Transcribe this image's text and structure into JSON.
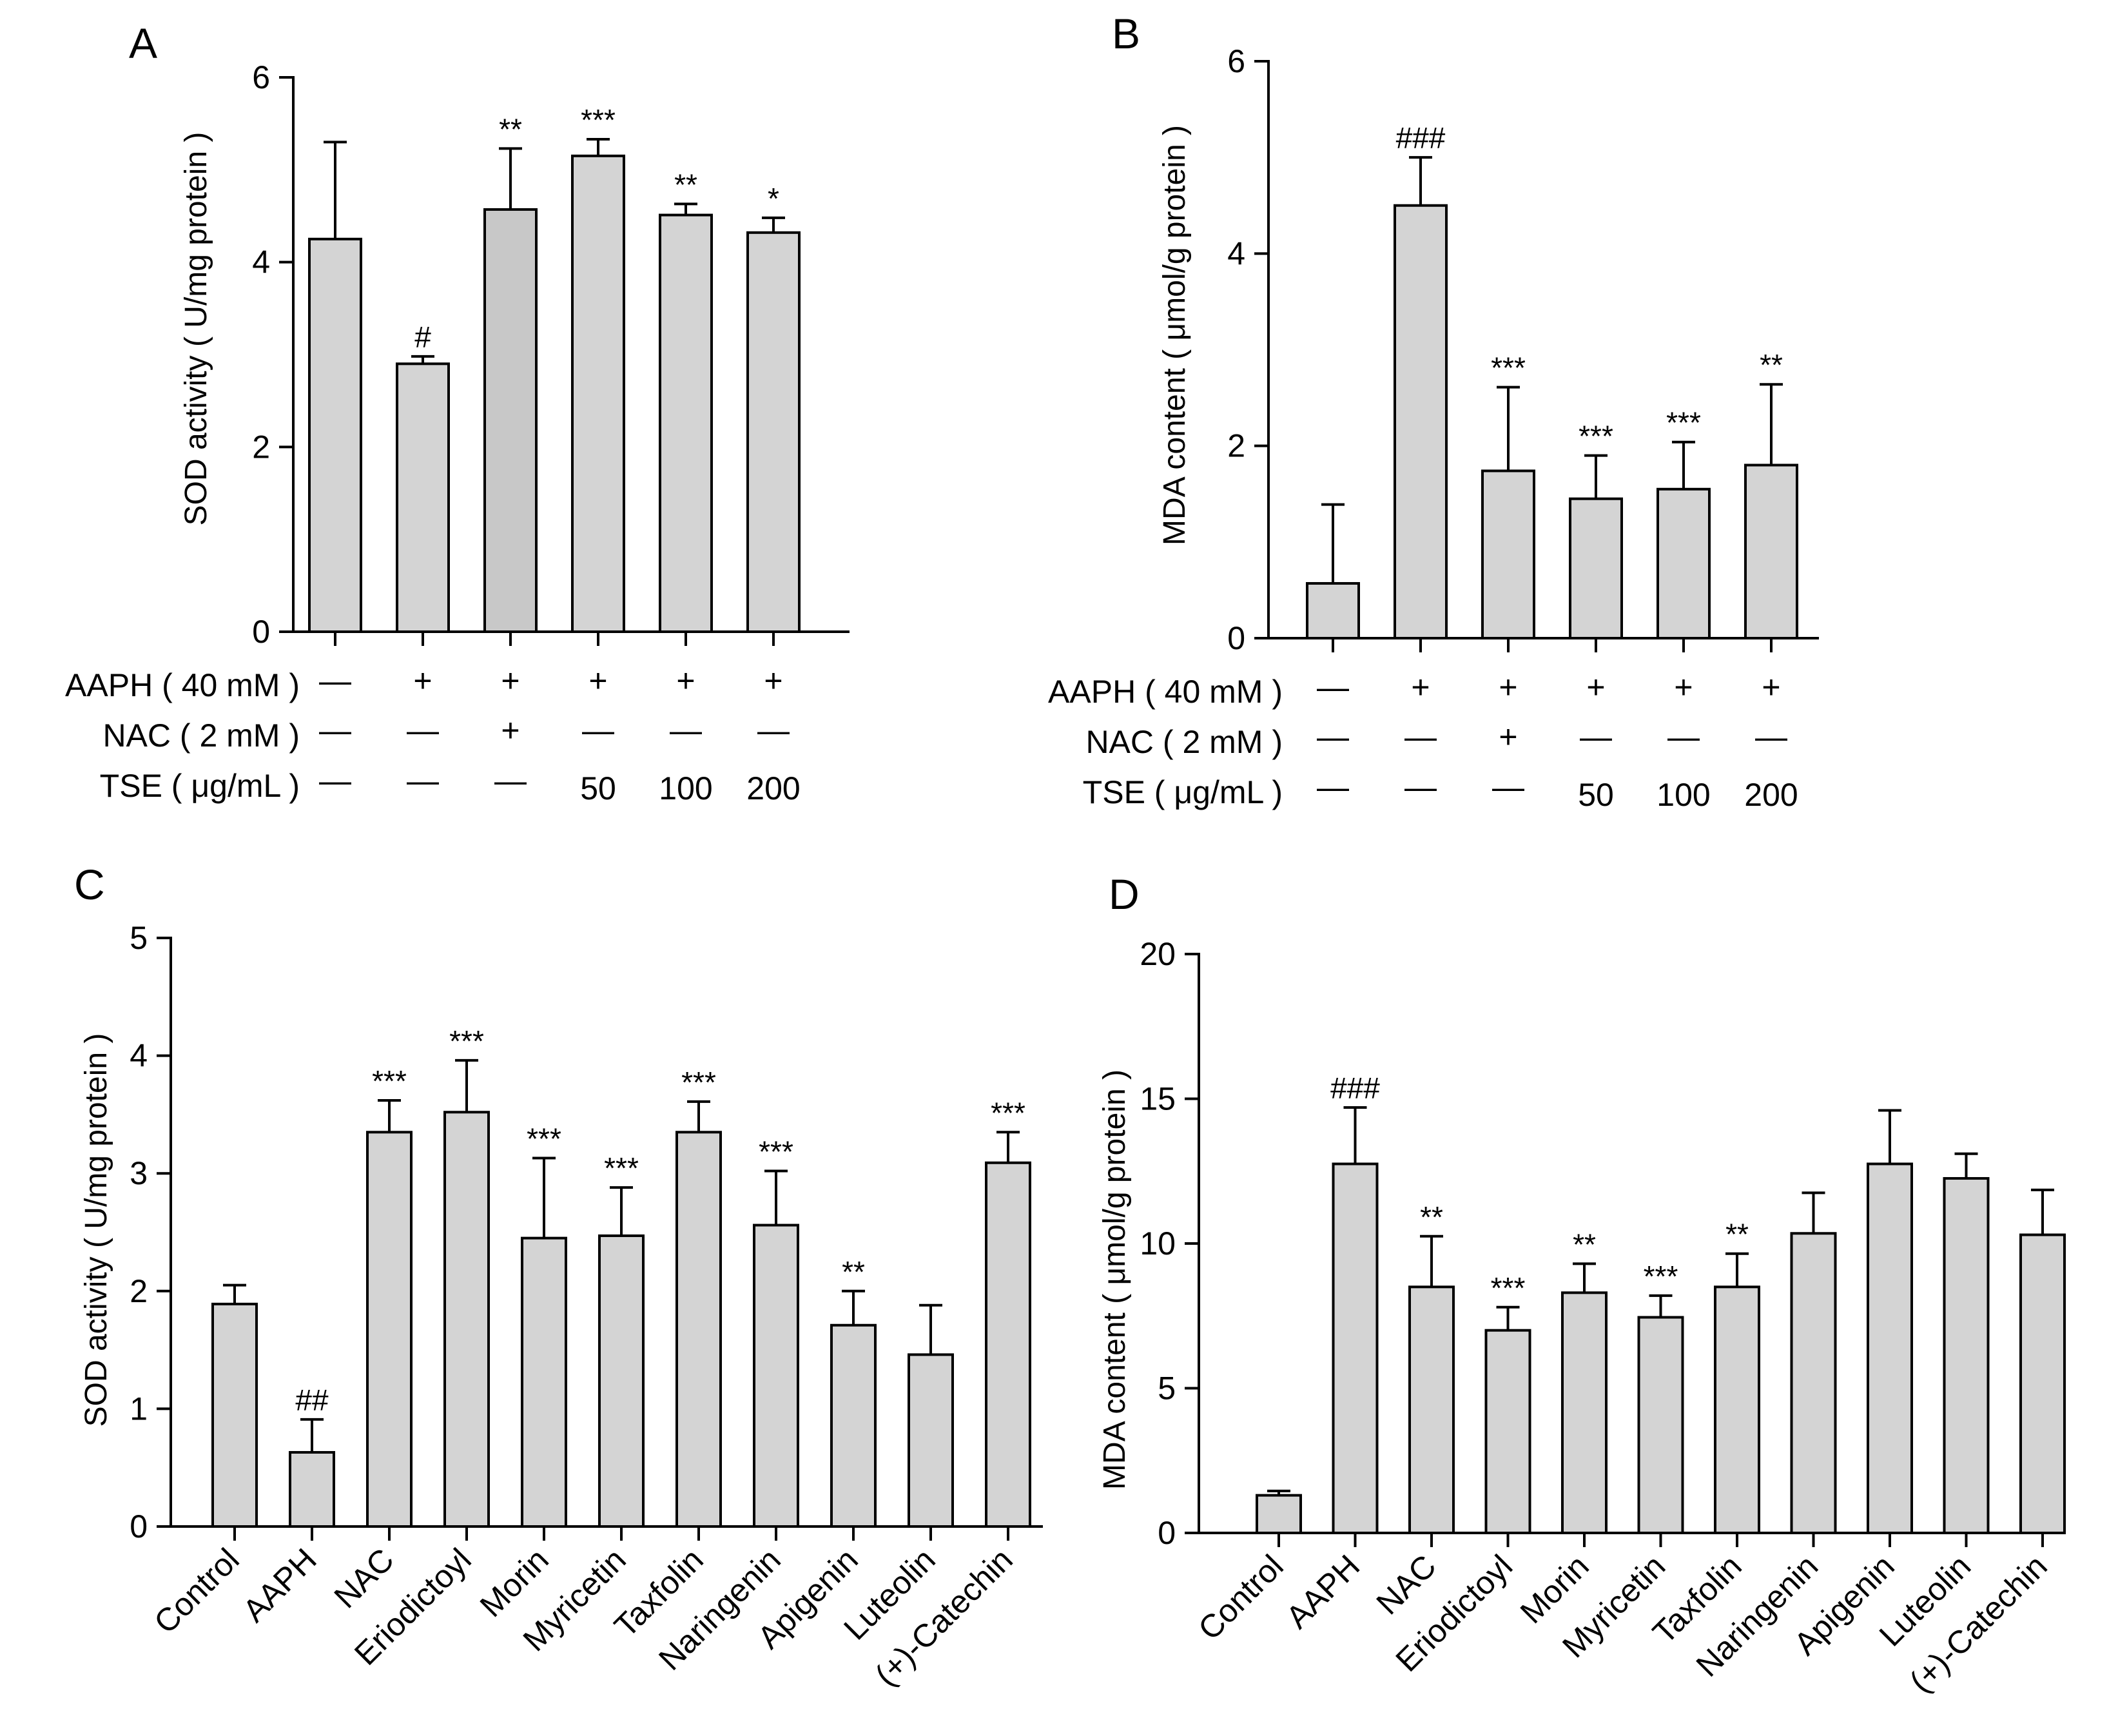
{
  "figure": {
    "bar_fill": "#d4d4d4",
    "bar_fill_alt": "#c8c8c8",
    "stroke": "#000000",
    "background": "#ffffff"
  },
  "chart_data": [
    {
      "id": "A",
      "panel_label": "A",
      "type": "bar",
      "ylabel": "SOD activity ( U/mg protein )",
      "ylim": [
        0,
        6
      ],
      "yticks": [
        "0",
        "2",
        "4",
        "6"
      ],
      "values": [
        4.25,
        2.9,
        4.57,
        5.15,
        4.51,
        4.32
      ],
      "errors": [
        1.05,
        0.08,
        0.66,
        0.18,
        0.12,
        0.16
      ],
      "annotations": [
        "",
        "#",
        "**",
        "***",
        "**",
        "*"
      ],
      "conditions": [
        {
          "label": "AAPH ( 40 mM )",
          "marks": [
            "—",
            "+",
            "+",
            "+",
            "+",
            "+"
          ]
        },
        {
          "label": "NAC ( 2 mM )",
          "marks": [
            "—",
            "—",
            "+",
            "—",
            "—",
            "—"
          ]
        },
        {
          "label": "TSE ( μg/mL )",
          "marks": [
            "—",
            "—",
            "—",
            "50",
            "100",
            "200"
          ]
        }
      ]
    },
    {
      "id": "B",
      "panel_label": "B",
      "type": "bar",
      "ylabel": "MDA content ( μmol/g protein )",
      "ylim": [
        0,
        6
      ],
      "yticks": [
        "0",
        "2",
        "4",
        "6"
      ],
      "values": [
        0.57,
        4.5,
        1.74,
        1.45,
        1.55,
        1.8
      ],
      "errors": [
        0.82,
        0.5,
        0.87,
        0.45,
        0.49,
        0.84
      ],
      "annotations": [
        "",
        "###",
        "***",
        "***",
        "***",
        "**"
      ],
      "conditions": [
        {
          "label": "AAPH ( 40 mM )",
          "marks": [
            "—",
            "+",
            "+",
            "+",
            "+",
            "+"
          ]
        },
        {
          "label": "NAC ( 2 mM )",
          "marks": [
            "—",
            "—",
            "+",
            "—",
            "—",
            "—"
          ]
        },
        {
          "label": "TSE ( μg/mL )",
          "marks": [
            "—",
            "—",
            "—",
            "50",
            "100",
            "200"
          ]
        }
      ]
    },
    {
      "id": "C",
      "panel_label": "C",
      "type": "bar",
      "ylabel": "SOD activity ( U/mg protein )",
      "ylim": [
        0,
        5
      ],
      "yticks": [
        "0",
        "1",
        "2",
        "3",
        "4",
        "5"
      ],
      "categories": [
        "Control",
        "AAPH",
        "NAC",
        "Eriodictoyl",
        "Morin",
        "Myricetin",
        "Taxfolin",
        "Naringenin",
        "Apigenin",
        "Luteolin",
        "(+)-Catechin"
      ],
      "values": [
        1.89,
        0.63,
        3.35,
        3.52,
        2.45,
        2.47,
        3.35,
        2.56,
        1.71,
        1.46,
        3.09
      ],
      "errors": [
        0.16,
        0.28,
        0.27,
        0.44,
        0.68,
        0.41,
        0.26,
        0.46,
        0.29,
        0.42,
        0.26
      ],
      "annotations": [
        "",
        "##",
        "***",
        "***",
        "***",
        "***",
        "***",
        "***",
        "**",
        "",
        "***"
      ]
    },
    {
      "id": "D",
      "panel_label": "D",
      "type": "bar",
      "ylabel": "MDA content ( μmol/g protein )",
      "ylim": [
        0,
        20
      ],
      "yticks": [
        "0",
        "5",
        "10",
        "15",
        "20"
      ],
      "categories": [
        "Control",
        "AAPH",
        "NAC",
        "Eriodictoyl",
        "Morin",
        "Myricetin",
        "Taxfolin",
        "Naringenin",
        "Apigenin",
        "Luteolin",
        "(+)-Catechin"
      ],
      "values": [
        1.3,
        12.75,
        8.5,
        7.0,
        8.3,
        7.45,
        8.5,
        10.35,
        12.75,
        12.25,
        10.3
      ],
      "errors": [
        0.15,
        1.95,
        1.75,
        0.8,
        1.0,
        0.75,
        1.15,
        1.4,
        1.85,
        0.85,
        1.55
      ],
      "annotations": [
        "",
        "###",
        "**",
        "***",
        "**",
        "***",
        "**",
        "",
        "",
        "",
        ""
      ]
    }
  ]
}
